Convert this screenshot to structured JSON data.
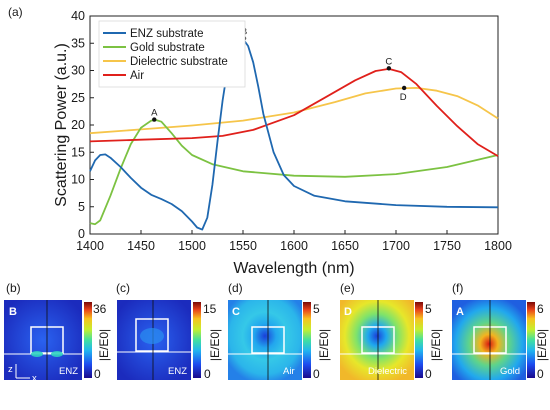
{
  "figure_label": "(a)",
  "colors": {
    "enz": "#1f68b0",
    "gold": "#7cc242",
    "dielectric": "#f6c54a",
    "air": "#e0201b"
  },
  "chart_data": {
    "type": "line",
    "xlabel": "Wavelength (nm)",
    "ylabel": "Scattering Power (a.u.)",
    "xlim": [
      1400,
      1800
    ],
    "ylim": [
      0,
      40
    ],
    "xticks": [
      1400,
      1450,
      1500,
      1550,
      1600,
      1650,
      1700,
      1750,
      1800
    ],
    "yticks": [
      0,
      5,
      10,
      15,
      20,
      25,
      30,
      35,
      40
    ],
    "grid": false,
    "legend_position": "top-left",
    "series": [
      {
        "name": "ENZ substrate",
        "color": "#1f68b0",
        "x": [
          1400,
          1405,
          1410,
          1415,
          1420,
          1430,
          1440,
          1450,
          1460,
          1470,
          1480,
          1490,
          1500,
          1505,
          1510,
          1515,
          1520,
          1525,
          1530,
          1535,
          1540,
          1545,
          1550,
          1555,
          1560,
          1565,
          1570,
          1580,
          1590,
          1600,
          1620,
          1650,
          1700,
          1750,
          1800
        ],
        "y": [
          11.5,
          13.5,
          14.5,
          14.6,
          14.0,
          12.3,
          10.3,
          8.5,
          7.2,
          6.4,
          5.5,
          4.2,
          2.3,
          1.2,
          0.8,
          3.0,
          9.0,
          17.0,
          24.5,
          30.5,
          34.0,
          35.5,
          35.8,
          34.5,
          31.5,
          27.0,
          22.0,
          15.0,
          10.8,
          8.8,
          7.0,
          6.0,
          5.3,
          5.0,
          4.9
        ]
      },
      {
        "name": "Gold substrate",
        "color": "#7cc242",
        "x": [
          1400,
          1405,
          1410,
          1420,
          1430,
          1440,
          1450,
          1460,
          1465,
          1470,
          1480,
          1490,
          1500,
          1520,
          1550,
          1600,
          1650,
          1700,
          1750,
          1800
        ],
        "y": [
          2.0,
          1.8,
          2.5,
          7.0,
          12.0,
          16.5,
          19.5,
          20.8,
          20.9,
          20.6,
          18.5,
          16.2,
          14.5,
          12.8,
          11.5,
          10.7,
          10.5,
          11.0,
          12.3,
          14.5
        ]
      },
      {
        "name": "Dielectric substrate",
        "color": "#f6c54a",
        "x": [
          1400,
          1450,
          1500,
          1550,
          1600,
          1640,
          1670,
          1700,
          1720,
          1740,
          1760,
          1780,
          1800
        ],
        "y": [
          18.5,
          19.2,
          19.9,
          20.8,
          22.3,
          24.2,
          25.8,
          26.7,
          26.8,
          26.3,
          25.3,
          23.6,
          21.2
        ]
      },
      {
        "name": "Air",
        "color": "#e0201b",
        "x": [
          1400,
          1450,
          1500,
          1530,
          1560,
          1600,
          1630,
          1660,
          1680,
          1693,
          1705,
          1720,
          1740,
          1760,
          1780,
          1800
        ],
        "y": [
          17.0,
          17.3,
          17.6,
          18.0,
          19.1,
          21.8,
          25.0,
          28.2,
          29.9,
          30.3,
          29.7,
          27.5,
          23.5,
          19.8,
          16.5,
          14.3
        ]
      }
    ],
    "annotations": [
      {
        "label": "A",
        "x": 1463,
        "y": 21.0
      },
      {
        "label": "B",
        "x": 1551,
        "y": 35.9
      },
      {
        "label": "C",
        "x": 1693,
        "y": 30.4
      },
      {
        "label": "D",
        "x": 1708,
        "y": 26.8
      }
    ]
  },
  "maps": [
    {
      "panel_label": "(b)",
      "corner": "B",
      "tag": "ENZ",
      "cb_max": "36",
      "cb_min": "0",
      "cb_label": "|E/E0|"
    },
    {
      "panel_label": "(c)",
      "corner": "",
      "tag": "ENZ",
      "cb_max": "15",
      "cb_min": "0",
      "cb_label": "|E/E0|"
    },
    {
      "panel_label": "(d)",
      "corner": "C",
      "tag": "Air",
      "cb_max": "5",
      "cb_min": "0",
      "cb_label": "|E/E0|"
    },
    {
      "panel_label": "(e)",
      "corner": "D",
      "tag": "Dielectric",
      "cb_max": "5",
      "cb_min": "0",
      "cb_label": "|E/E0|"
    },
    {
      "panel_label": "(f)",
      "corner": "A",
      "tag": "Gold",
      "cb_max": "6",
      "cb_min": "0",
      "cb_label": "|E/E0|"
    }
  ],
  "axes_indicator": {
    "vertical": "z",
    "horizontal": "x"
  }
}
